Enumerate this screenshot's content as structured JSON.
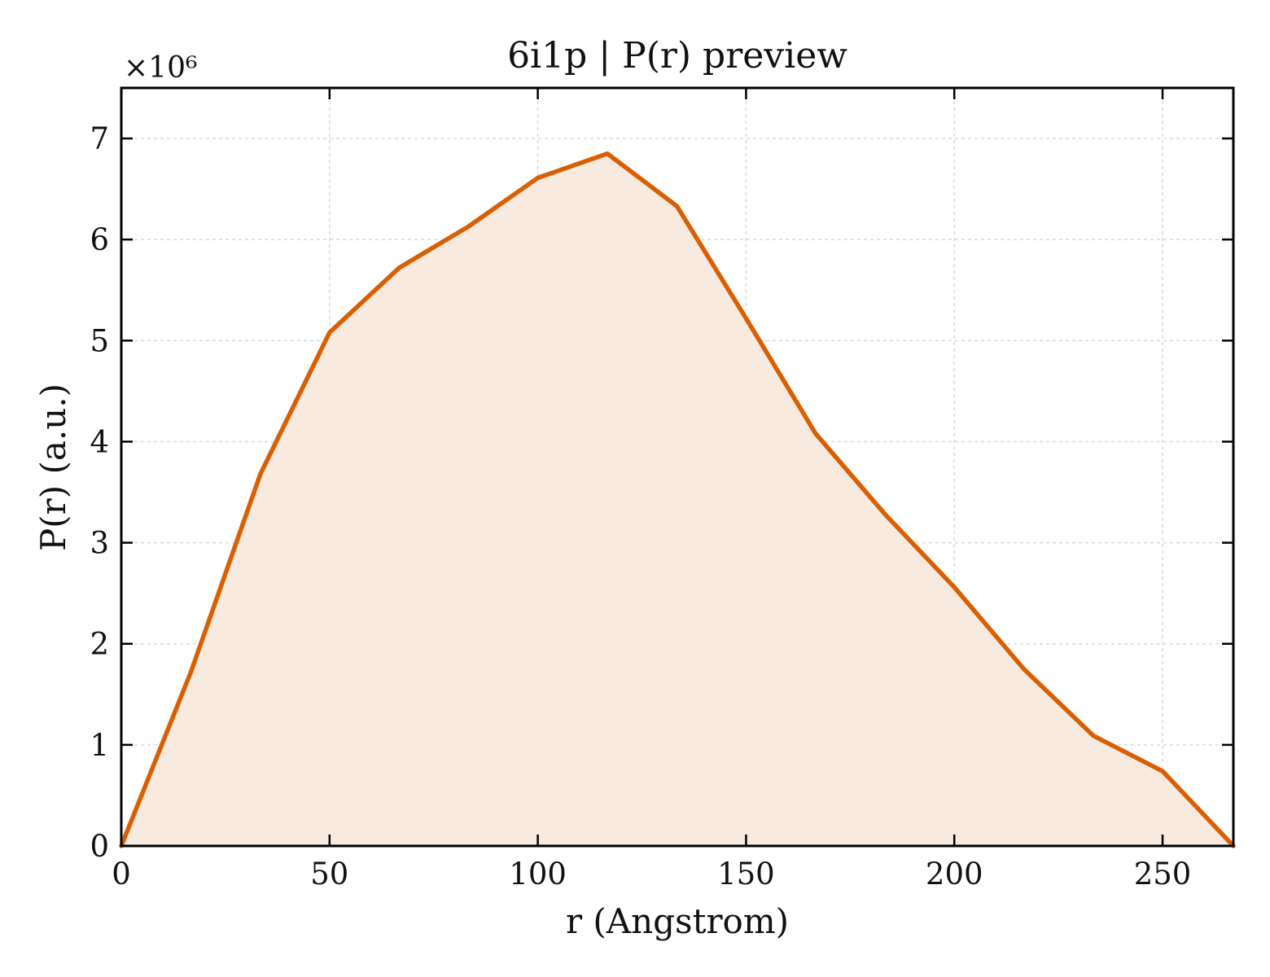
{
  "chart_data": {
    "type": "area",
    "title": "6i1p | P(r) preview",
    "xlabel": "r (Angstrom)",
    "ylabel": "P(r) (a.u.)",
    "y_multiplier_label": "×10⁶",
    "y_scale": 1000000,
    "xlim": [
      0,
      267
    ],
    "ylim": [
      0,
      7.5
    ],
    "x_ticks": [
      0,
      50,
      100,
      150,
      200,
      250
    ],
    "y_ticks": [
      0,
      1,
      2,
      3,
      4,
      5,
      6,
      7
    ],
    "x_tick_labels": [
      "0",
      "50",
      "100",
      "150",
      "200",
      "250"
    ],
    "y_tick_labels": [
      "0",
      "1",
      "2",
      "3",
      "4",
      "5",
      "6",
      "7"
    ],
    "grid": true,
    "legend": false,
    "series": [
      {
        "x": [
          0,
          16.7,
          33.4,
          50,
          66.7,
          83.4,
          100,
          116.7,
          133.4,
          150,
          166.7,
          183.4,
          200,
          216.7,
          233.4,
          250,
          267
        ],
        "values": [
          0,
          1.72,
          3.68,
          5.08,
          5.72,
          6.13,
          6.61,
          6.85,
          6.33,
          5.22,
          4.08,
          3.28,
          2.56,
          1.75,
          1.09,
          0.74,
          0
        ]
      }
    ],
    "colors": {
      "line": "#d95f02",
      "fill": "#f9eadf",
      "grid": "#d9d9d9",
      "axes": "#000000",
      "text": "#111111"
    }
  }
}
